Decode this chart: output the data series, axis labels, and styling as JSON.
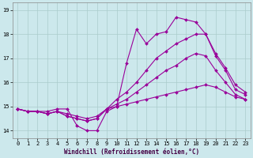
{
  "xlabel": "Windchill (Refroidissement éolien,°C)",
  "bg_color": "#cce8ec",
  "line_color": "#990099",
  "grid_color": "#aacccc",
  "xlim": [
    -0.5,
    23.5
  ],
  "ylim": [
    13.7,
    19.3
  ],
  "xticks": [
    0,
    1,
    2,
    3,
    4,
    5,
    6,
    7,
    8,
    9,
    10,
    11,
    12,
    13,
    14,
    15,
    16,
    17,
    18,
    19,
    20,
    21,
    22,
    23
  ],
  "yticks": [
    14,
    15,
    16,
    17,
    18,
    19
  ],
  "line1": [
    14.9,
    14.8,
    14.8,
    14.8,
    14.9,
    14.9,
    14.2,
    14.0,
    14.0,
    14.8,
    15.0,
    16.8,
    18.2,
    17.6,
    18.0,
    18.1,
    18.7,
    18.6,
    18.5,
    18.0,
    17.1,
    16.5,
    15.7,
    15.5
  ],
  "line2": [
    14.9,
    14.8,
    14.8,
    14.7,
    14.8,
    14.7,
    14.6,
    14.5,
    14.6,
    14.9,
    15.3,
    15.6,
    16.0,
    16.5,
    17.0,
    17.3,
    17.6,
    17.8,
    18.0,
    18.0,
    17.2,
    16.6,
    15.9,
    15.6
  ],
  "line3": [
    14.9,
    14.8,
    14.8,
    14.7,
    14.8,
    14.6,
    14.5,
    14.4,
    14.5,
    14.9,
    15.1,
    15.3,
    15.6,
    15.9,
    16.2,
    16.5,
    16.7,
    17.0,
    17.2,
    17.1,
    16.5,
    16.0,
    15.5,
    15.3
  ],
  "line4": [
    14.9,
    14.8,
    14.8,
    14.7,
    14.8,
    14.6,
    14.5,
    14.4,
    14.5,
    14.9,
    15.0,
    15.1,
    15.2,
    15.3,
    15.4,
    15.5,
    15.6,
    15.7,
    15.8,
    15.9,
    15.8,
    15.6,
    15.4,
    15.3
  ],
  "marker": "D",
  "markersize": 2.0,
  "linewidth": 0.8,
  "tick_fontsize": 5.0,
  "xlabel_fontsize": 5.5,
  "spine_color": "#888888"
}
